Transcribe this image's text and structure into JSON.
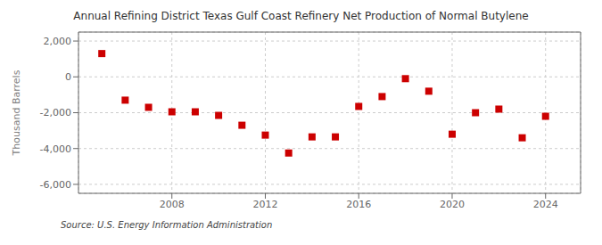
{
  "chart_data": {
    "type": "scatter",
    "title": "Annual Refining District Texas Gulf Coast Refinery Net Production of Normal Butylene",
    "ylabel": "Thousand Barrels",
    "annotations": [
      "Source: U.S. Energy Information Administration"
    ],
    "x": [
      2005,
      2006,
      2007,
      2008,
      2009,
      2010,
      2011,
      2012,
      2013,
      2014,
      2015,
      2016,
      2017,
      2018,
      2019,
      2020,
      2021,
      2022,
      2023,
      2024
    ],
    "values": [
      1300,
      -1300,
      -1700,
      -1950,
      -1950,
      -2150,
      -2700,
      -3250,
      -4250,
      -3350,
      -3350,
      -1650,
      -1100,
      -100,
      -800,
      -3200,
      -2000,
      -1800,
      -3400,
      -2200
    ],
    "color": "#cc0000",
    "marker": "square",
    "xlim": [
      2004,
      2025.5
    ],
    "xticks": [
      2008,
      2012,
      2016,
      2020,
      2024
    ],
    "ylim": [
      -6500,
      2500
    ],
    "yticks": [
      {
        "value": -6000,
        "label": "-6,000"
      },
      {
        "value": -4000,
        "label": "-4,000"
      },
      {
        "value": -2000,
        "label": "-2,000"
      },
      0,
      {
        "value": 2000,
        "label": "2,000"
      }
    ],
    "grid": true
  }
}
